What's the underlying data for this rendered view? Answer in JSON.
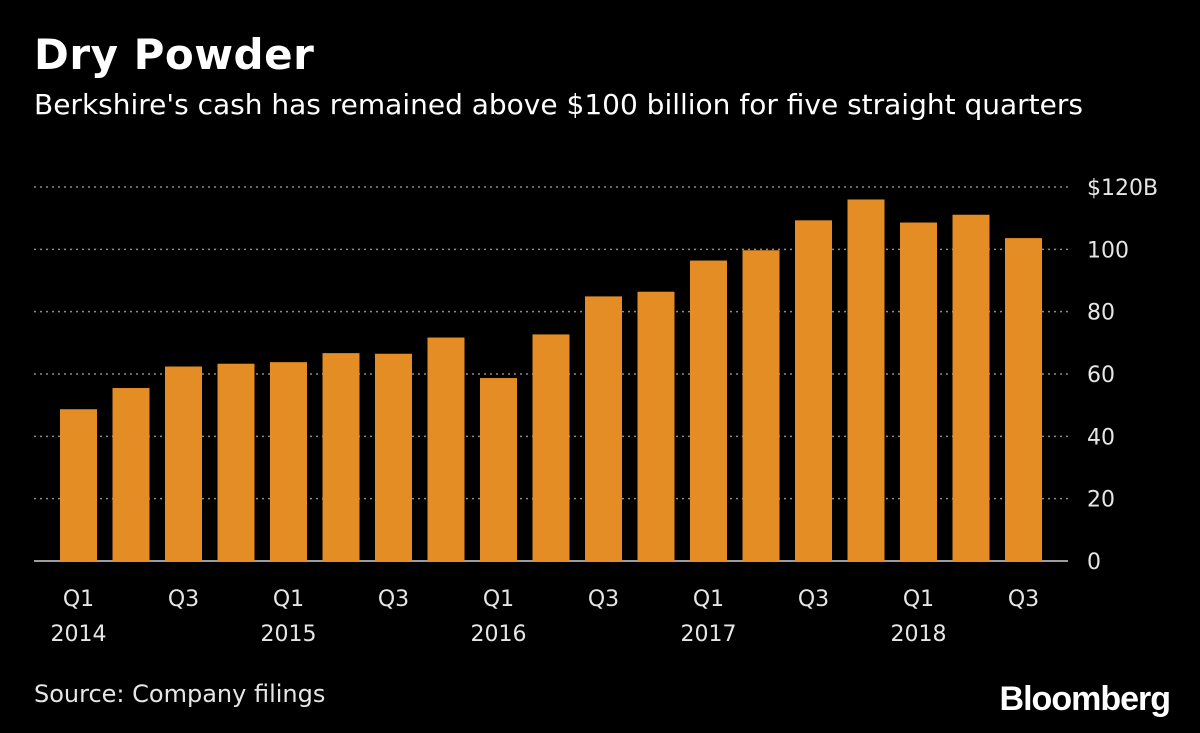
{
  "title": "Dry Powder",
  "subtitle": "Berkshire's cash has remained above $100 billion for five straight quarters",
  "source": "Source: Company filings",
  "brand": "Bloomberg",
  "colors": {
    "bar": "#e38d24",
    "background": "#000000",
    "grid": "#8a8a8a"
  },
  "chart_data": {
    "type": "bar",
    "title": "Dry Powder",
    "xlabel": "",
    "ylabel": "",
    "ylim": [
      0,
      120
    ],
    "yticks": [
      0,
      20,
      40,
      60,
      80,
      100,
      120
    ],
    "ytick_labels": [
      "0",
      "20",
      "40",
      "60",
      "80",
      "100",
      "$120B"
    ],
    "grid": true,
    "categories": [
      "Q1 2014",
      "Q2 2014",
      "Q3 2014",
      "Q4 2014",
      "Q1 2015",
      "Q2 2015",
      "Q3 2015",
      "Q4 2015",
      "Q1 2016",
      "Q2 2016",
      "Q3 2016",
      "Q4 2016",
      "Q1 2017",
      "Q2 2017",
      "Q3 2017",
      "Q4 2017",
      "Q1 2018",
      "Q2 2018",
      "Q3 2018"
    ],
    "values": [
      48.7,
      55.5,
      62.4,
      63.3,
      63.8,
      66.7,
      66.5,
      71.7,
      58.7,
      72.7,
      84.9,
      86.4,
      96.4,
      99.7,
      109.3,
      116.0,
      108.6,
      111.1,
      103.6
    ],
    "xtick_labels": [
      {
        "index": 0,
        "line1": "Q1",
        "line2": "2014"
      },
      {
        "index": 2,
        "line1": "Q3",
        "line2": ""
      },
      {
        "index": 4,
        "line1": "Q1",
        "line2": "2015"
      },
      {
        "index": 6,
        "line1": "Q3",
        "line2": ""
      },
      {
        "index": 8,
        "line1": "Q1",
        "line2": "2016"
      },
      {
        "index": 10,
        "line1": "Q3",
        "line2": ""
      },
      {
        "index": 12,
        "line1": "Q1",
        "line2": "2017"
      },
      {
        "index": 14,
        "line1": "Q3",
        "line2": ""
      },
      {
        "index": 16,
        "line1": "Q1",
        "line2": "2018"
      },
      {
        "index": 18,
        "line1": "Q3",
        "line2": ""
      }
    ]
  }
}
